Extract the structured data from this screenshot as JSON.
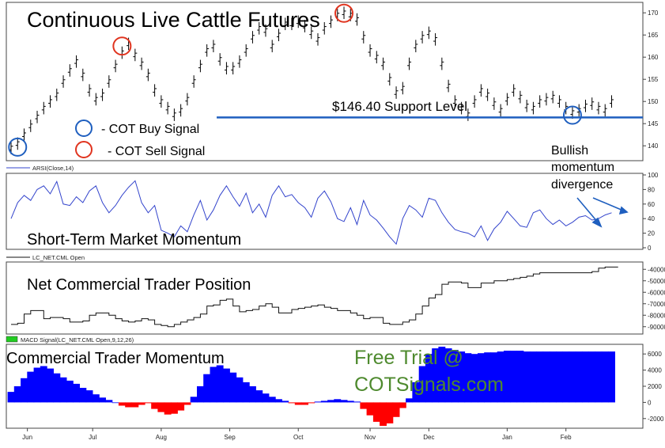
{
  "chart_data": [
    {
      "type": "line",
      "title": "Continuous Live Cattle Futures",
      "ylim": [
        137,
        172
      ],
      "yticks": [
        140,
        145,
        150,
        155,
        160,
        165,
        170
      ],
      "support": {
        "value": 146.4,
        "label": "$146.40 Support Level",
        "color": "#1f5fbf"
      },
      "legend": [
        {
          "label": "- COT Buy Signal",
          "color": "#1f5fbf"
        },
        {
          "label": "- COT Sell Signal",
          "color": "#e0341f"
        }
      ],
      "x": [
        0,
        2,
        4,
        6,
        8,
        10,
        12,
        14,
        16,
        18,
        20,
        22,
        24,
        26,
        28,
        30,
        32,
        34,
        36,
        38,
        40,
        42,
        44,
        46,
        48,
        50,
        52,
        54,
        56,
        58,
        60,
        62,
        64,
        66,
        68,
        70,
        72,
        74,
        76,
        78,
        80,
        82,
        84,
        86,
        88,
        90,
        92,
        94,
        96,
        98,
        100,
        102,
        104,
        106,
        108,
        110,
        112,
        114,
        116,
        118,
        120,
        122,
        124,
        126,
        128,
        130,
        132,
        134,
        136,
        138,
        140,
        142,
        144,
        146,
        148,
        150,
        152,
        154,
        156,
        158,
        160,
        162,
        164,
        166,
        168,
        170,
        172,
        174,
        176,
        178,
        180,
        182,
        184
      ],
      "values": [
        139.5,
        140.5,
        142.5,
        144.5,
        146.5,
        148.5,
        150.0,
        151.5,
        154.5,
        157.0,
        159.0,
        156.0,
        152.5,
        150.5,
        151.5,
        154.5,
        158.0,
        161.0,
        163.0,
        160.5,
        158.5,
        156.0,
        152.5,
        150.0,
        148.5,
        147.0,
        148.0,
        150.5,
        154.5,
        158.0,
        161.5,
        162.5,
        159.5,
        157.5,
        157.5,
        159.0,
        161.5,
        164.5,
        166.5,
        166.0,
        162.5,
        165.0,
        167.5,
        167.5,
        168.0,
        167.0,
        165.5,
        164.0,
        166.5,
        168.0,
        169.5,
        170.0,
        169.5,
        168.5,
        164.5,
        161.5,
        160.0,
        158.5,
        155.0,
        152.0,
        153.0,
        158.5,
        162.5,
        164.5,
        165.5,
        164.0,
        158.5,
        153.5,
        150.0,
        148.5,
        147.0,
        150.0,
        152.5,
        151.5,
        149.5,
        148.0,
        150.5,
        152.5,
        151.0,
        149.0,
        148.5,
        150.0,
        150.5,
        151.0,
        150.0,
        148.5,
        147.5,
        148.0,
        149.0,
        149.5,
        148.5,
        148.0,
        150.0
      ],
      "signals": [
        {
          "type": "buy",
          "x": 2,
          "value": 139.7
        },
        {
          "type": "sell",
          "x": 34,
          "value": 162.5
        },
        {
          "type": "sell",
          "x": 102,
          "value": 169.9
        },
        {
          "type": "buy",
          "x": 172,
          "value": 146.9
        }
      ]
    },
    {
      "type": "line",
      "series_label": "ARSI(Close,14)",
      "title": "Short-Term Market Momentum",
      "annotation": [
        "Bullish",
        "momentum",
        "divergence"
      ],
      "ylim": [
        0,
        100
      ],
      "yticks": [
        0,
        20,
        40,
        60,
        80,
        100
      ],
      "x": [
        0,
        2,
        4,
        6,
        8,
        10,
        12,
        14,
        16,
        18,
        20,
        22,
        24,
        26,
        28,
        30,
        32,
        34,
        36,
        38,
        40,
        42,
        44,
        46,
        48,
        50,
        52,
        54,
        56,
        58,
        60,
        62,
        64,
        66,
        68,
        70,
        72,
        74,
        76,
        78,
        80,
        82,
        84,
        86,
        88,
        90,
        92,
        94,
        96,
        98,
        100,
        102,
        104,
        106,
        108,
        110,
        112,
        114,
        116,
        118,
        120,
        122,
        124,
        126,
        128,
        130,
        132,
        134,
        136,
        138,
        140,
        142,
        144,
        146,
        148,
        150,
        152,
        154,
        156,
        158,
        160,
        162,
        164,
        166,
        168,
        170,
        172,
        174,
        176,
        178,
        180,
        182,
        184
      ],
      "values": [
        40,
        62,
        72,
        65,
        80,
        85,
        74,
        91,
        60,
        58,
        70,
        62,
        78,
        85,
        62,
        48,
        58,
        72,
        83,
        92,
        62,
        48,
        58,
        24,
        20,
        15,
        30,
        22,
        45,
        65,
        38,
        52,
        72,
        85,
        70,
        57,
        75,
        48,
        60,
        42,
        72,
        85,
        70,
        73,
        62,
        55,
        42,
        68,
        78,
        63,
        40,
        36,
        55,
        32,
        65,
        45,
        38,
        27,
        15,
        5,
        40,
        58,
        52,
        42,
        68,
        65,
        48,
        35,
        25,
        22,
        20,
        15,
        30,
        10,
        26,
        35,
        50,
        40,
        30,
        28,
        48,
        52,
        40,
        32,
        38,
        30,
        35,
        42,
        44,
        38,
        40,
        45,
        48
      ],
      "color": "#3344cc"
    },
    {
      "type": "line",
      "series_label": "LC_NET.CML Open",
      "title": "Net Commercial Trader Position",
      "ylim": [
        -95000,
        -35000
      ],
      "yticks": [
        -40000,
        -50000,
        -60000,
        -70000,
        -80000,
        -90000
      ],
      "x": [
        0,
        2,
        4,
        6,
        8,
        10,
        12,
        14,
        16,
        18,
        20,
        22,
        24,
        26,
        28,
        30,
        32,
        34,
        36,
        38,
        40,
        42,
        44,
        46,
        48,
        50,
        52,
        54,
        56,
        58,
        60,
        62,
        64,
        66,
        68,
        70,
        72,
        74,
        76,
        78,
        80,
        82,
        84,
        86,
        88,
        90,
        92,
        94,
        96,
        98,
        100,
        102,
        104,
        106,
        108,
        110,
        112,
        114,
        116,
        118,
        120,
        122,
        124,
        126,
        128,
        130,
        132,
        134,
        136,
        138,
        140,
        142,
        144,
        146,
        148,
        150,
        152,
        154,
        156,
        158,
        160,
        162,
        164,
        166,
        168,
        170,
        172,
        174,
        176,
        178,
        180,
        182,
        184
      ],
      "values": [
        -88000,
        -87000,
        -79000,
        -76000,
        -76000,
        -83000,
        -82000,
        -82000,
        -83000,
        -86000,
        -86000,
        -85000,
        -80000,
        -78000,
        -78000,
        -80000,
        -83000,
        -85000,
        -86000,
        -85000,
        -83000,
        -84000,
        -88000,
        -89000,
        -90000,
        -88000,
        -86000,
        -84000,
        -82000,
        -79000,
        -72000,
        -71000,
        -67000,
        -66000,
        -72000,
        -77000,
        -76000,
        -75000,
        -72000,
        -70000,
        -73000,
        -78000,
        -78000,
        -75000,
        -74000,
        -73000,
        -72000,
        -71000,
        -73000,
        -74000,
        -76000,
        -76000,
        -78000,
        -80000,
        -83000,
        -82000,
        -82000,
        -87000,
        -88000,
        -88000,
        -86000,
        -84000,
        -79000,
        -72000,
        -65000,
        -62000,
        -53000,
        -51000,
        -51000,
        -52000,
        -56000,
        -56000,
        -52000,
        -52000,
        -50000,
        -50000,
        -49000,
        -48000,
        -47000,
        -46000,
        -44000,
        -43000,
        -43000,
        -43000,
        -43000,
        -43000,
        -43000,
        -43000,
        -43000,
        -42000,
        -39000,
        -38000,
        -38000
      ],
      "color": "#111111"
    },
    {
      "type": "bar",
      "series_label": "MACD Signal(LC_NET.CML Open,9,12,26)",
      "title": "Commercial Trader Momentum",
      "annotation": [
        "Free Trial @",
        "COTSignals.com"
      ],
      "ylim": [
        -3000,
        7000
      ],
      "yticks": [
        6000,
        4000,
        2000,
        0,
        -2000
      ],
      "colors": {
        "positive": "#0000ff",
        "negative": "#ff0000",
        "legend_swatch": "#22cc22"
      },
      "x": [
        0,
        2,
        4,
        6,
        8,
        10,
        12,
        14,
        16,
        18,
        20,
        22,
        24,
        26,
        28,
        30,
        32,
        34,
        36,
        38,
        40,
        42,
        44,
        46,
        48,
        50,
        52,
        54,
        56,
        58,
        60,
        62,
        64,
        66,
        68,
        70,
        72,
        74,
        76,
        78,
        80,
        82,
        84,
        86,
        88,
        90,
        92,
        94,
        96,
        98,
        100,
        102,
        104,
        106,
        108,
        110,
        112,
        114,
        116,
        118,
        120,
        122,
        124,
        126,
        128,
        130,
        132,
        134,
        136,
        138,
        140,
        142,
        144,
        146,
        148,
        150,
        152,
        154,
        156,
        158,
        160,
        162,
        164,
        166,
        168,
        170,
        172,
        174,
        176,
        178,
        180,
        182,
        184
      ],
      "values": [
        1300,
        2000,
        3000,
        3800,
        4300,
        4500,
        4200,
        3600,
        3100,
        2700,
        2300,
        1800,
        1500,
        1000,
        600,
        300,
        0,
        -400,
        -600,
        -600,
        -300,
        -100,
        -800,
        -1200,
        -1500,
        -1400,
        -1000,
        -300,
        700,
        2000,
        3500,
        4400,
        4600,
        4200,
        3700,
        3100,
        2500,
        2000,
        1500,
        1100,
        700,
        400,
        200,
        -100,
        -300,
        -300,
        -100,
        100,
        200,
        300,
        400,
        300,
        200,
        100,
        -800,
        -1600,
        -2400,
        -2900,
        -2600,
        -1800,
        -700,
        500,
        2500,
        4500,
        6000,
        6700,
        6900,
        6700,
        6500,
        6300,
        6100,
        6000,
        6100,
        6200,
        6200,
        6300,
        6400,
        6400,
        6400,
        6300,
        6300,
        6300,
        6300,
        6300,
        6300,
        6300,
        6300,
        6300,
        6300,
        6300,
        6300,
        6300,
        6300
      ],
      "month_labels": [
        "Jun",
        "Jul",
        "Aug",
        "Sep",
        "Oct",
        "Nov",
        "Dec",
        "Jan",
        "Feb"
      ],
      "month_x": [
        5,
        25,
        46,
        67,
        88,
        110,
        128,
        152,
        170
      ]
    }
  ]
}
